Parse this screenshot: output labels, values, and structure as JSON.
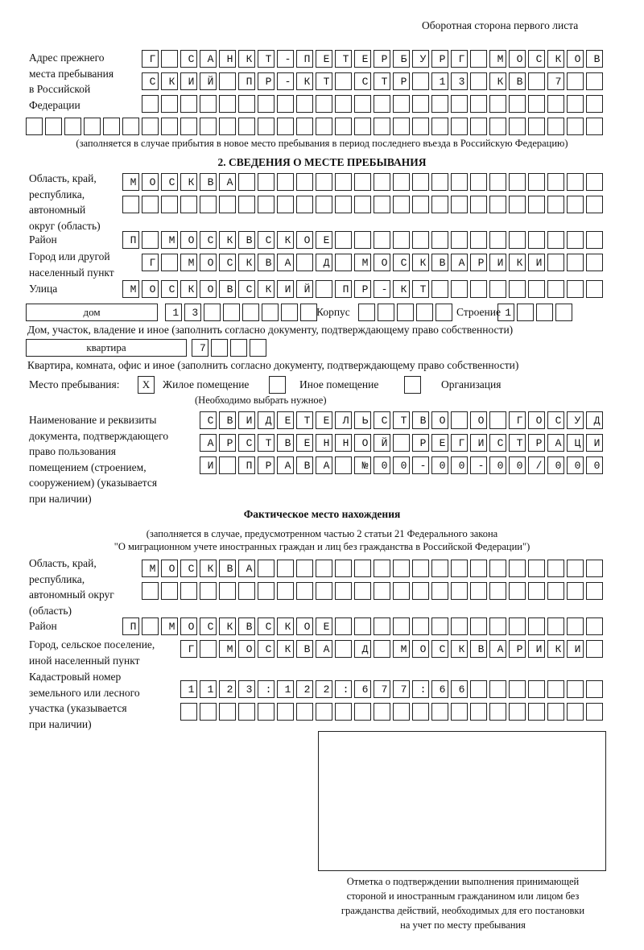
{
  "header": "Оборотная сторона первого листа",
  "previous_address": {
    "label": "Адрес прежнего места пребывания в Российской Федерации",
    "label_lines": [
      "Адрес прежнего",
      "места пребывания",
      "в Российской",
      "Федерации"
    ],
    "rows": [
      "Г САНКТ-ПЕТЕРБУРГ МОСКОВ",
      "СКИЙ ПР-КТ СТР 13 КВ 7",
      "",
      ""
    ],
    "note": "(заполняется в случае прибытия в новое место пребывания в период последнего въезда в Российскую Федерацию)"
  },
  "section2": {
    "title": "2. СВЕДЕНИЯ О МЕСТЕ ПРЕБЫВАНИЯ",
    "region_label": [
      "Область, край,",
      "республика,",
      "автономный",
      "округ (область)"
    ],
    "region_rows": [
      "МОСКВА",
      ""
    ],
    "district_label": "Район",
    "district": "П МОСКВСКОЕ",
    "city_label": [
      "Город или другой",
      "населенный пункт"
    ],
    "city": "Г МОСКВА Д МОСКВАРИКИ",
    "street_label": "Улица",
    "street": "МОСКОВСКИЙ ПР-КТ",
    "house_type": "дом",
    "house": "13",
    "korpus_label": "Корпус",
    "korpus": "",
    "building_label": "Строение",
    "building": "1",
    "house_note": "Дом, участок, владение и иное (заполнить согласно документу, подтверждающему право собственности)",
    "apt_type": "квартира",
    "apt": "7",
    "apt_note": "Квартира, комната, офис и иное (заполнить согласно документу, подтверждающему право собственности)",
    "stay_label": "Место пребывания:",
    "stay_options": [
      {
        "mark": "X",
        "label": "Жилое помещение"
      },
      {
        "mark": "",
        "label": "Иное помещение"
      },
      {
        "mark": "",
        "label": "Организация"
      }
    ],
    "stay_note": "(Необходимо выбрать нужное)",
    "doc_label": [
      "Наименование и реквизиты",
      "документа, подтверждающего",
      "право пользования",
      "помещением (строением,",
      "сооружением) (указывается",
      "при наличии)"
    ],
    "doc_rows": [
      "СВИДЕТЕЛЬСТВО О ГОСУД",
      "АРСТВЕННОЙ РЕГИСТРАЦИ",
      "И ПРАВА №00-00-00/000"
    ]
  },
  "actual": {
    "title": "Фактическое место нахождения",
    "note1": "(заполняется в случае, предусмотренном частью 2 статьи 21 Федерального закона",
    "note2": "\"О миграционном учете иностранных граждан и лиц без гражданства в Российской Федерации\")",
    "region_label": [
      "Область, край,",
      "республика,",
      "автономный округ",
      "(область)"
    ],
    "region_rows": [
      "МОСКВА",
      ""
    ],
    "district_label": "Район",
    "district": "П МОСКВСКОЕ",
    "city_label": [
      "Город, сельское поселение,",
      "иной населенный пункт"
    ],
    "city": "Г МОСКВА Д МОСКВАРИКИ",
    "cadastre_label": [
      "Кадастровый номер",
      "земельного или лесного",
      "участка (указывается",
      "при наличии)"
    ],
    "cadastre_rows": [
      "1123:122:677:66",
      ""
    ]
  },
  "stamp_caption": [
    "Отметка о подтверждении выполнения принимающей",
    "стороной и иностранным гражданином или лицом без",
    "гражданства действий, необходимых для его постановки",
    "на учет по месту пребывания"
  ]
}
